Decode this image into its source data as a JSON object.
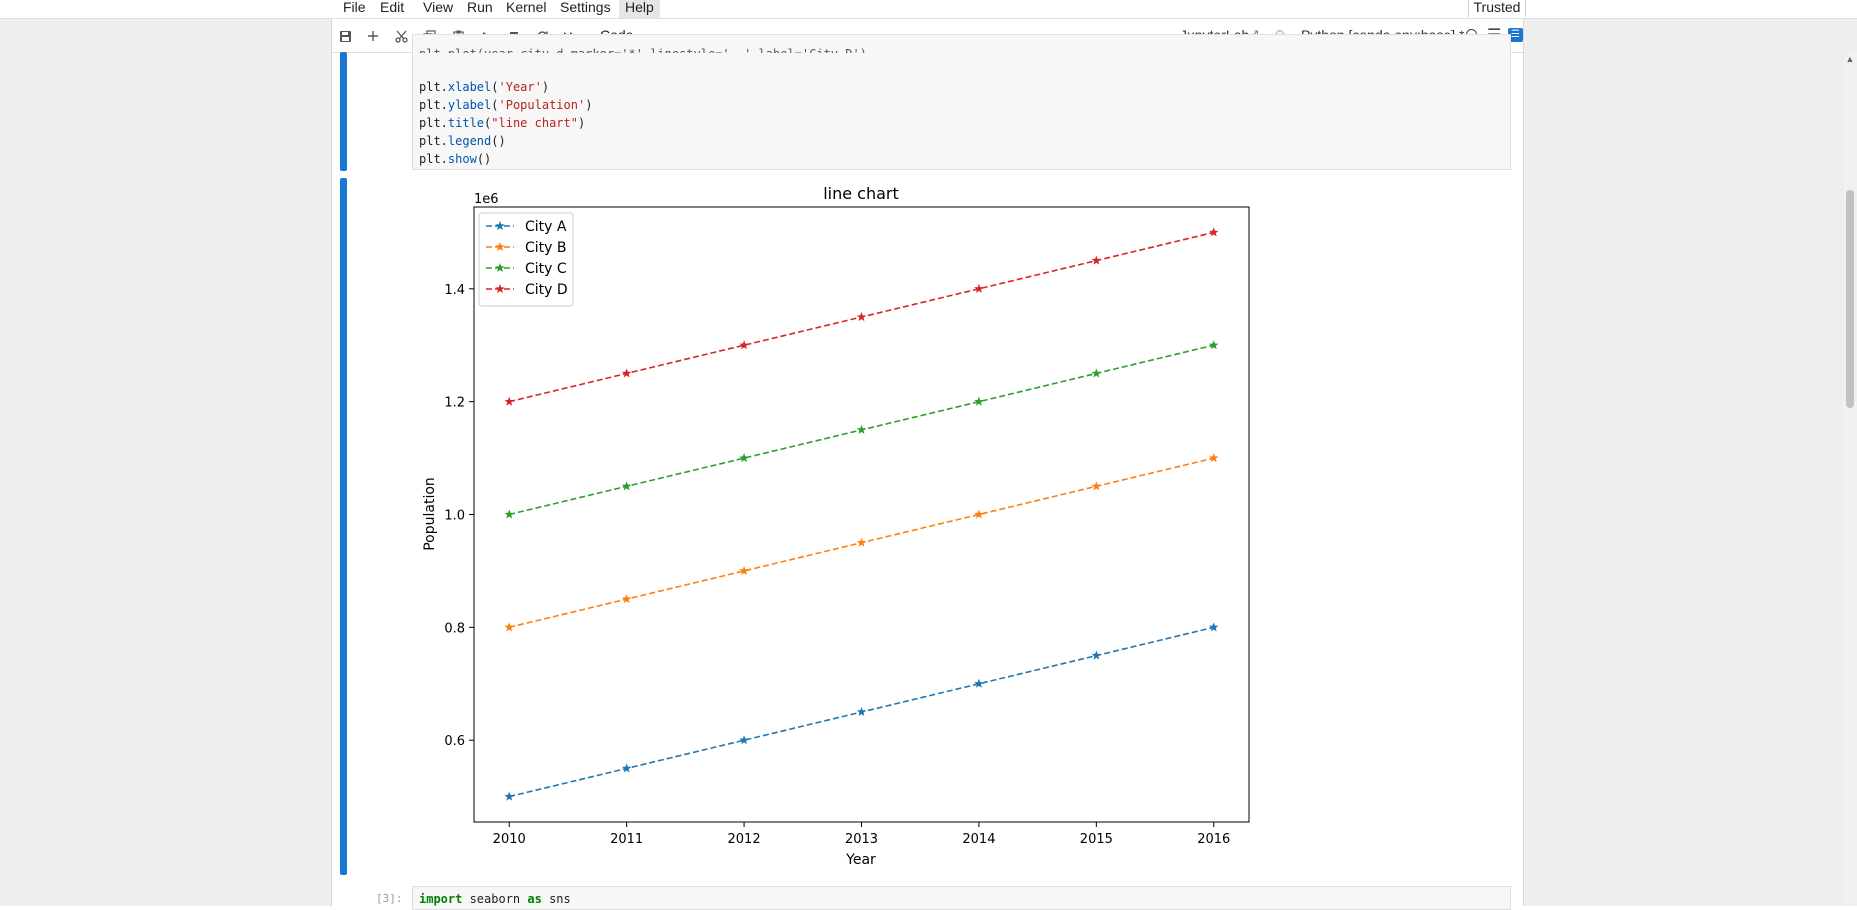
{
  "menubar": {
    "items": [
      {
        "label": "File"
      },
      {
        "label": "Edit"
      },
      {
        "label": "View"
      },
      {
        "label": "Run"
      },
      {
        "label": "Kernel"
      },
      {
        "label": "Settings"
      },
      {
        "label": "Help"
      }
    ],
    "trusted_label": "Trusted"
  },
  "toolbar": {
    "icons": [
      "save-icon",
      "add-cell-icon",
      "cut-icon",
      "copy-icon",
      "paste-icon",
      "run-icon",
      "stop-icon",
      "restart-icon",
      "fast-forward-icon"
    ],
    "cell_type": "Code",
    "jupyterlab_label": "JupyterLab",
    "kernel_name": "Python [conda env:base] *"
  },
  "code_cell": {
    "partial_line": "plt.plot(year,city_d,marker='*',linestyle='--',label='City D')",
    "lines": [
      {
        "obj": "plt.",
        "fn": "xlabel",
        "open": "(",
        "str": "'Year'",
        "close": ")"
      },
      {
        "obj": "plt.",
        "fn": "ylabel",
        "open": "(",
        "str": "'Population'",
        "close": ")"
      },
      {
        "obj": "plt.",
        "fn": "title",
        "open": "(",
        "str": "\"line chart\"",
        "close": ")"
      },
      {
        "obj": "plt.",
        "fn": "legend",
        "open": "()",
        "str": "",
        "close": ""
      },
      {
        "obj": "plt.",
        "fn": "show",
        "open": "()",
        "str": "",
        "close": ""
      }
    ]
  },
  "next_cell": {
    "prompt": "[3]:",
    "kw1": "import",
    "module": " seaborn ",
    "kw2": "as",
    "alias": " sns"
  },
  "chart_data": {
    "type": "line",
    "title": "line chart",
    "xlabel": "Year",
    "ylabel": "Population",
    "y_offset_label": "1e6",
    "x": [
      2010,
      2011,
      2012,
      2013,
      2014,
      2015,
      2016
    ],
    "xlim": [
      2009.7,
      2016.3
    ],
    "ylim": [
      0.455,
      1.545
    ],
    "y_ticks": [
      0.6,
      0.8,
      1.0,
      1.2,
      1.4
    ],
    "y_scale_note": "values in units of 1e6",
    "marker": "star",
    "linestyle": "dashed",
    "legend_position": "top-left",
    "grid": false,
    "series": [
      {
        "name": "City A",
        "color": "#1f77b4",
        "values": [
          0.5,
          0.55,
          0.6,
          0.65,
          0.7,
          0.75,
          0.8
        ]
      },
      {
        "name": "City B",
        "color": "#ff7f0e",
        "values": [
          0.8,
          0.85,
          0.9,
          0.95,
          1.0,
          1.05,
          1.1
        ]
      },
      {
        "name": "City C",
        "color": "#2ca02c",
        "values": [
          1.0,
          1.05,
          1.1,
          1.15,
          1.2,
          1.25,
          1.3
        ]
      },
      {
        "name": "City D",
        "color": "#d62728",
        "values": [
          1.2,
          1.25,
          1.3,
          1.35,
          1.4,
          1.45,
          1.5
        ]
      }
    ]
  }
}
